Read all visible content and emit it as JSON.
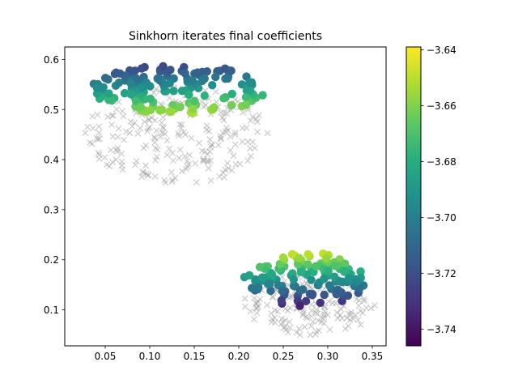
{
  "chart_data": {
    "type": "scatter",
    "title": "Sinkhorn iterates final coefficients",
    "xlabel": "",
    "ylabel": "",
    "xlim": [
      0.0045,
      0.3655
    ],
    "ylim": [
      0.028,
      0.625
    ],
    "xticks": [
      0.05,
      0.1,
      0.15,
      0.2,
      0.25,
      0.3,
      0.35
    ],
    "xtick_labels": [
      "0.05",
      "0.10",
      "0.15",
      "0.20",
      "0.25",
      "0.30",
      "0.35"
    ],
    "yticks": [
      0.1,
      0.2,
      0.3,
      0.4,
      0.5,
      0.6
    ],
    "ytick_labels": [
      "0.1",
      "0.2",
      "0.3",
      "0.4",
      "0.5",
      "0.6"
    ],
    "grid": false,
    "legend": null,
    "colorbar": {
      "colormap": "viridis",
      "range": [
        -3.746,
        -3.639
      ],
      "ticks": [
        -3.64,
        -3.66,
        -3.68,
        -3.7,
        -3.72,
        -3.74
      ],
      "tick_labels": [
        "−3.64",
        "−3.66",
        "−3.68",
        "−3.70",
        "−3.72",
        "−3.74"
      ]
    },
    "series": [
      {
        "marker": "x",
        "color": "#999999",
        "groups": [
          {
            "center": [
              0.13,
              0.448
            ],
            "spread": [
              0.103,
              0.098
            ],
            "count": 230,
            "seed": 7
          },
          {
            "center": [
              0.28,
              0.11
            ],
            "spread": [
              0.075,
              0.062
            ],
            "count": 160,
            "seed": 11
          }
        ]
      },
      {
        "marker": "o",
        "colored_by": "coefficient",
        "groups": [
          {
            "center": [
              0.13,
              0.54
            ],
            "spread": [
              0.1,
              0.05
            ],
            "count": 150,
            "seed": 3,
            "color_trend": {
              "base": -3.688,
              "x_slope": 0.4,
              "y_slope": -0.9
            }
          },
          {
            "center": [
              0.275,
              0.16
            ],
            "spread": [
              0.07,
              0.055
            ],
            "count": 130,
            "seed": 5,
            "color_trend": {
              "base": -3.692,
              "x_slope": -0.2,
              "y_slope": 1.0
            }
          }
        ]
      }
    ]
  }
}
